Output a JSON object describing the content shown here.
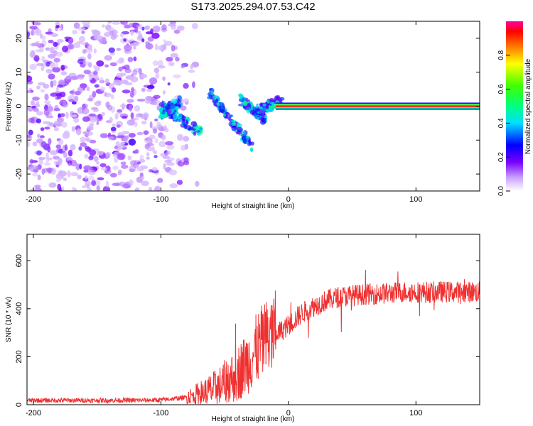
{
  "title": "S173.2025.294.07.53.C42",
  "chart_data": [
    {
      "type": "heatmap",
      "name": "spectrogram",
      "xlabel": "Height of straight line (km)",
      "ylabel": "Frequency (Hz)",
      "xlim": [
        -205,
        150
      ],
      "ylim": [
        -25,
        25
      ],
      "xticks": [
        -200,
        -100,
        0,
        100
      ],
      "yticks": [
        -20,
        -10,
        0,
        10,
        20
      ],
      "colorbar": {
        "label": "Normalized spectral amplitude",
        "range": [
          0,
          1
        ],
        "ticks": [
          "0.0",
          "0.2",
          "0.4",
          "0.6",
          "0.8"
        ]
      },
      "features": [
        {
          "description": "scattered purple noise",
          "x_range": [
            -205,
            -90
          ],
          "freq_range": [
            -25,
            25
          ],
          "amplitude": 0.12
        },
        {
          "description": "descending scattered arcs",
          "x_range": [
            -100,
            -20
          ],
          "freq_range": [
            -13,
            5
          ],
          "amplitude": 0.35
        },
        {
          "description": "constant frequency line at 0 Hz",
          "x_range": [
            -10,
            150
          ],
          "freq": 0,
          "amplitude": 0.95
        }
      ]
    },
    {
      "type": "line",
      "name": "snr",
      "xlabel": "Height of straight line (km)",
      "ylabel": "SNR (10 * v/v)",
      "xlim": [
        -205,
        150
      ],
      "ylim": [
        0,
        710
      ],
      "xticks": [
        -200,
        -100,
        0,
        100
      ],
      "yticks": [
        0,
        200,
        400,
        600
      ],
      "series": [
        {
          "name": "SNR",
          "color": "#f03030",
          "x": [
            -205,
            -190,
            -175,
            -160,
            -145,
            -130,
            -115,
            -100,
            -90,
            -80,
            -70,
            -60,
            -50,
            -40,
            -30,
            -25,
            -20,
            -15,
            -10,
            -5,
            0,
            10,
            20,
            30,
            40,
            50,
            60,
            70,
            80,
            90,
            100,
            110,
            120,
            130,
            140,
            150
          ],
          "values": [
            18,
            18,
            18,
            18,
            18,
            18,
            18,
            20,
            25,
            30,
            45,
            60,
            90,
            130,
            190,
            230,
            260,
            280,
            295,
            310,
            330,
            380,
            410,
            435,
            450,
            455,
            460,
            462,
            465,
            470,
            470,
            468,
            470,
            470,
            470,
            470
          ]
        }
      ]
    }
  ]
}
